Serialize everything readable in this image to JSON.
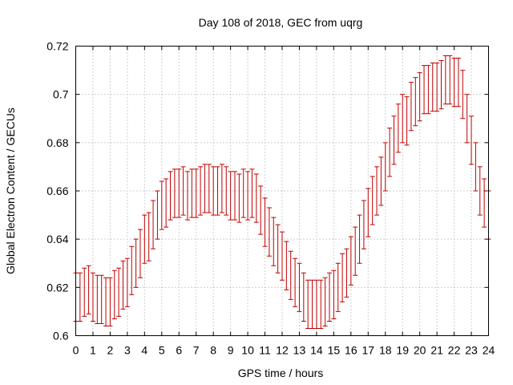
{
  "chart_data": {
    "type": "scatter",
    "title": "Day 108 of 2018, GEC from uqrg",
    "xlabel": "GPS time / hours",
    "ylabel": "Global Electron Content / GECUs",
    "xlim": [
      0,
      24
    ],
    "ylim": [
      0.6,
      0.72
    ],
    "x_ticks": [
      "0",
      "1",
      "2",
      "3",
      "4",
      "5",
      "6",
      "7",
      "8",
      "9",
      "10",
      "11",
      "12",
      "13",
      "14",
      "15",
      "16",
      "17",
      "18",
      "19",
      "20",
      "21",
      "22",
      "23",
      "24"
    ],
    "y_ticks": [
      "0.6",
      "0.62",
      "0.64",
      "0.66",
      "0.68",
      "0.7",
      "0.72"
    ],
    "grid": true,
    "error_bar_half_width": 0.01,
    "series_color": "#c00000",
    "series": [
      {
        "x": [
          0,
          0.25,
          0.5,
          0.75,
          1,
          1.25,
          1.5,
          1.75,
          2,
          2.25,
          2.5,
          2.75,
          3,
          3.25,
          3.5,
          3.75,
          4,
          4.25,
          4.5,
          4.75,
          5,
          5.25,
          5.5,
          5.75,
          6,
          6.25,
          6.5,
          6.75,
          7,
          7.25,
          7.5,
          7.75,
          8,
          8.25,
          8.5,
          8.75,
          9,
          9.25,
          9.5,
          9.75,
          10,
          10.25,
          10.5,
          10.75,
          11,
          11.25,
          11.5,
          11.75,
          12,
          12.25,
          12.5,
          12.75,
          13,
          13.25,
          13.5,
          13.75,
          14,
          14.25,
          14.5,
          14.75,
          15,
          15.25,
          15.5,
          15.75,
          16,
          16.25,
          16.5,
          16.75,
          17,
          17.25,
          17.5,
          17.75,
          18,
          18.25,
          18.5,
          18.75,
          19,
          19.25,
          19.5,
          19.75,
          20,
          20.25,
          20.5,
          20.75,
          21,
          21.25,
          21.5,
          21.75,
          22,
          22.25,
          22.5,
          22.75,
          23,
          23.25,
          23.5,
          23.75,
          24
        ],
        "y": [
          0.616,
          0.616,
          0.618,
          0.619,
          0.616,
          0.615,
          0.615,
          0.614,
          0.614,
          0.617,
          0.618,
          0.621,
          0.622,
          0.627,
          0.63,
          0.634,
          0.64,
          0.641,
          0.646,
          0.65,
          0.654,
          0.655,
          0.658,
          0.659,
          0.659,
          0.66,
          0.658,
          0.659,
          0.659,
          0.66,
          0.661,
          0.661,
          0.66,
          0.66,
          0.661,
          0.66,
          0.658,
          0.658,
          0.657,
          0.659,
          0.658,
          0.659,
          0.657,
          0.652,
          0.647,
          0.643,
          0.639,
          0.636,
          0.633,
          0.629,
          0.625,
          0.622,
          0.62,
          0.616,
          0.613,
          0.613,
          0.613,
          0.613,
          0.614,
          0.616,
          0.617,
          0.62,
          0.624,
          0.626,
          0.631,
          0.635,
          0.64,
          0.646,
          0.651,
          0.656,
          0.66,
          0.664,
          0.67,
          0.676,
          0.681,
          0.686,
          0.69,
          0.689,
          0.695,
          0.697,
          0.699,
          0.702,
          0.702,
          0.703,
          0.703,
          0.704,
          0.706,
          0.706,
          0.705,
          0.705,
          0.7,
          0.69,
          0.681,
          0.67,
          0.66,
          0.655,
          0.65
        ]
      }
    ]
  }
}
